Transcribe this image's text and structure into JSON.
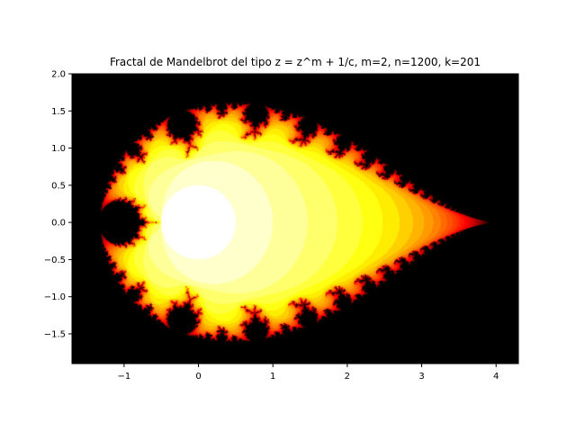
{
  "chart_data": {
    "type": "heatmap",
    "title": "Fractal de Mandelbrot del tipo z =  z^m + 1/c, m=2, n=1200, k=201",
    "xlabel": "",
    "ylabel": "",
    "xlim": [
      -1.7,
      4.3
    ],
    "ylim": [
      -1.9,
      2.0
    ],
    "x_ticks": [
      -1,
      0,
      1,
      2,
      3,
      4
    ],
    "x_tick_labels": [
      "−1",
      "0",
      "1",
      "2",
      "3",
      "4"
    ],
    "y_ticks": [
      -1.5,
      -1.0,
      -0.5,
      0.0,
      0.5,
      1.0,
      1.5,
      2.0
    ],
    "y_tick_labels": [
      "−1.5",
      "−1.0",
      "−0.5",
      "0.0",
      "0.5",
      "1.0",
      "1.5",
      "2.0"
    ],
    "grid": false,
    "legend": "none",
    "m": 2,
    "n": 1200,
    "k": 201,
    "colormap": "hot",
    "colors": {
      "interior": "#000000",
      "outside": "#ffffff",
      "edge_dark": "#5a0000",
      "edge_mid": "#e01000",
      "edge_bright": "#ffe000"
    }
  }
}
